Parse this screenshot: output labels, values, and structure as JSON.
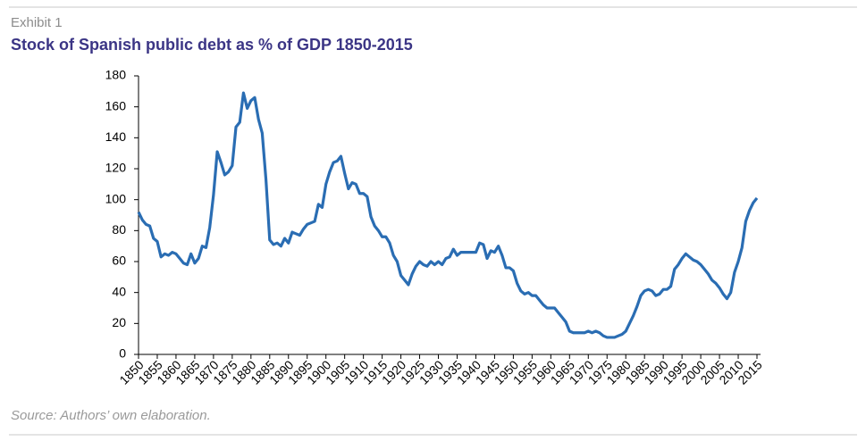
{
  "chart_data": {
    "type": "line",
    "label": "Exhibit 1",
    "title": "Stock of Spanish public debt as % of GDP 1850-2015",
    "source": "Source: Authors’ own elaboration.",
    "color": "#2a6db3",
    "x": [
      1850,
      1851,
      1852,
      1853,
      1854,
      1855,
      1856,
      1857,
      1858,
      1859,
      1860,
      1861,
      1862,
      1863,
      1864,
      1865,
      1866,
      1867,
      1868,
      1869,
      1870,
      1871,
      1872,
      1873,
      1874,
      1875,
      1876,
      1877,
      1878,
      1879,
      1880,
      1881,
      1882,
      1883,
      1884,
      1885,
      1886,
      1887,
      1888,
      1889,
      1890,
      1891,
      1892,
      1893,
      1894,
      1895,
      1896,
      1897,
      1898,
      1899,
      1900,
      1901,
      1902,
      1903,
      1904,
      1905,
      1906,
      1907,
      1908,
      1909,
      1910,
      1911,
      1912,
      1913,
      1914,
      1915,
      1916,
      1917,
      1918,
      1919,
      1920,
      1921,
      1922,
      1923,
      1924,
      1925,
      1926,
      1927,
      1928,
      1929,
      1930,
      1931,
      1932,
      1933,
      1934,
      1935,
      1936,
      1937,
      1938,
      1939,
      1940,
      1941,
      1942,
      1943,
      1944,
      1945,
      1946,
      1947,
      1948,
      1949,
      1950,
      1951,
      1952,
      1953,
      1954,
      1955,
      1956,
      1957,
      1958,
      1959,
      1960,
      1961,
      1962,
      1963,
      1964,
      1965,
      1966,
      1967,
      1968,
      1969,
      1970,
      1971,
      1972,
      1973,
      1974,
      1975,
      1976,
      1977,
      1978,
      1979,
      1980,
      1981,
      1982,
      1983,
      1984,
      1985,
      1986,
      1987,
      1988,
      1989,
      1990,
      1991,
      1992,
      1993,
      1994,
      1995,
      1996,
      1997,
      1998,
      1999,
      2000,
      2001,
      2002,
      2003,
      2004,
      2005,
      2006,
      2007,
      2008,
      2009,
      2010,
      2011,
      2012,
      2013,
      2014,
      2015
    ],
    "values": [
      92,
      87,
      84,
      83,
      75,
      73,
      63,
      65,
      64,
      66,
      65,
      62,
      59,
      58,
      65,
      59,
      62,
      70,
      69,
      82,
      103,
      131,
      124,
      116,
      118,
      122,
      147,
      150,
      169,
      159,
      164,
      166,
      152,
      143,
      113,
      74,
      71,
      72,
      70,
      75,
      72,
      79,
      78,
      77,
      81,
      84,
      85,
      86,
      97,
      95,
      110,
      118,
      124,
      125,
      128,
      117,
      107,
      111,
      110,
      104,
      104,
      102,
      89,
      83,
      80,
      76,
      76,
      72,
      64,
      60,
      51,
      48,
      45,
      52,
      57,
      60,
      58,
      57,
      60,
      58,
      60,
      58,
      62,
      63,
      68,
      64,
      66,
      66,
      66,
      66,
      66,
      72,
      71,
      62,
      67,
      66,
      70,
      64,
      56,
      56,
      54,
      46,
      41,
      39,
      40,
      38,
      38,
      35,
      32,
      30,
      30,
      30,
      27,
      24,
      21,
      15,
      14,
      14,
      14,
      14,
      15,
      14,
      15,
      14,
      12,
      11,
      11,
      11,
      12,
      13,
      15,
      20,
      25,
      31,
      38,
      41,
      42,
      41,
      38,
      39,
      42,
      42,
      44,
      55,
      58,
      62,
      65,
      63,
      61,
      60,
      58,
      55,
      52,
      48,
      46,
      43,
      39,
      36,
      40,
      53,
      60,
      69,
      86,
      93,
      98,
      101
    ],
    "xlim": [
      1850,
      2015
    ],
    "xticks": [
      1850,
      1855,
      1860,
      1865,
      1870,
      1875,
      1880,
      1885,
      1890,
      1895,
      1900,
      1905,
      1910,
      1915,
      1920,
      1925,
      1930,
      1935,
      1940,
      1945,
      1950,
      1955,
      1960,
      1965,
      1970,
      1975,
      1980,
      1985,
      1990,
      1995,
      2000,
      2005,
      2010,
      2015
    ],
    "ylim": [
      0,
      180
    ],
    "yticks": [
      0,
      20,
      40,
      60,
      80,
      100,
      120,
      140,
      160,
      180
    ]
  }
}
